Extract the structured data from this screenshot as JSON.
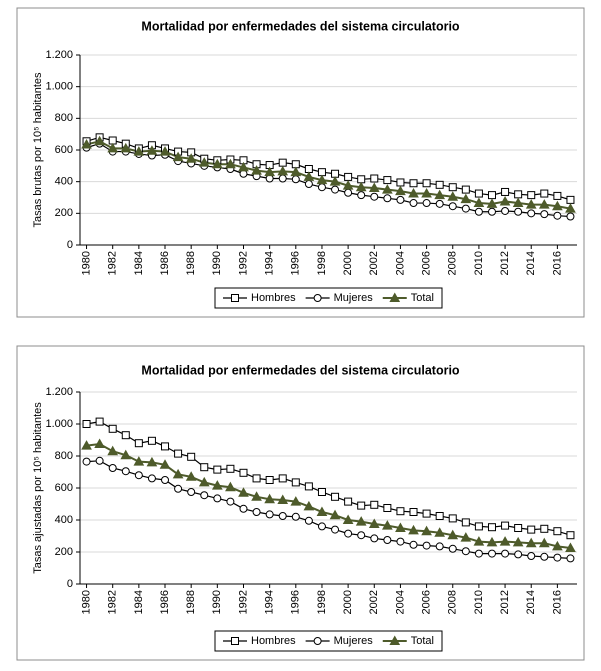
{
  "chart_data": [
    {
      "type": "line",
      "title": "Mortalidad por enfermedades del sistema circulatorio",
      "y_label": "Tasas brutas por 10⁵ habitantes",
      "x": [
        1980,
        1981,
        1982,
        1983,
        1984,
        1985,
        1986,
        1987,
        1988,
        1989,
        1990,
        1991,
        1992,
        1993,
        1994,
        1995,
        1996,
        1997,
        1998,
        1999,
        2000,
        2001,
        2002,
        2003,
        2004,
        2005,
        2006,
        2007,
        2008,
        2009,
        2010,
        2011,
        2012,
        2013,
        2014,
        2015,
        2016,
        2017
      ],
      "xlim": [
        1979.5,
        2017.5
      ],
      "xticks": [
        1980,
        1982,
        1984,
        1986,
        1988,
        1990,
        1992,
        1994,
        1996,
        1998,
        2000,
        2002,
        2004,
        2006,
        2008,
        2010,
        2012,
        2014,
        2016
      ],
      "ylim": [
        0,
        1200
      ],
      "yticks": [
        0,
        200,
        400,
        600,
        800,
        {
          "value": 1000,
          "label": "1.000"
        },
        {
          "value": 1200,
          "label": "1.200"
        }
      ],
      "grid": true,
      "legend": "bottom",
      "series": [
        {
          "name": "Hombres",
          "color": "#000000",
          "marker": "square",
          "values": [
            655,
            680,
            660,
            640,
            610,
            630,
            610,
            590,
            585,
            545,
            535,
            540,
            535,
            510,
            505,
            520,
            510,
            480,
            460,
            450,
            430,
            415,
            420,
            410,
            395,
            390,
            390,
            380,
            365,
            350,
            325,
            315,
            335,
            320,
            315,
            325,
            310,
            285
          ]
        },
        {
          "name": "Mujeres",
          "color": "#000000",
          "marker": "circle",
          "values": [
            615,
            640,
            590,
            590,
            575,
            565,
            570,
            530,
            515,
            500,
            490,
            480,
            450,
            435,
            420,
            420,
            415,
            385,
            365,
            350,
            330,
            315,
            305,
            295,
            285,
            265,
            265,
            260,
            245,
            230,
            210,
            210,
            215,
            210,
            200,
            195,
            185,
            180
          ]
        },
        {
          "name": "Total",
          "color": "#4e5b2b",
          "marker": "triangle",
          "values": [
            635,
            655,
            610,
            610,
            590,
            595,
            590,
            555,
            545,
            520,
            510,
            510,
            490,
            470,
            460,
            465,
            460,
            430,
            410,
            400,
            375,
            365,
            360,
            350,
            340,
            325,
            325,
            315,
            305,
            290,
            265,
            260,
            275,
            265,
            255,
            255,
            245,
            230
          ]
        }
      ]
    },
    {
      "type": "line",
      "title": "Mortalidad por enfermedades del sistema circulatorio",
      "y_label": "Tasas ajustadas por 10⁵ habitantes",
      "x": [
        1980,
        1981,
        1982,
        1983,
        1984,
        1985,
        1986,
        1987,
        1988,
        1989,
        1990,
        1991,
        1992,
        1993,
        1994,
        1995,
        1996,
        1997,
        1998,
        1999,
        2000,
        2001,
        2002,
        2003,
        2004,
        2005,
        2006,
        2007,
        2008,
        2009,
        2010,
        2011,
        2012,
        2013,
        2014,
        2015,
        2016,
        2017
      ],
      "xlim": [
        1979.5,
        2017.5
      ],
      "xticks": [
        1980,
        1982,
        1984,
        1986,
        1988,
        1990,
        1992,
        1994,
        1996,
        1998,
        2000,
        2002,
        2004,
        2006,
        2008,
        2010,
        2012,
        2014,
        2016
      ],
      "ylim": [
        0,
        1200
      ],
      "yticks": [
        0,
        200,
        400,
        600,
        800,
        {
          "value": 1000,
          "label": "1.000"
        },
        {
          "value": 1200,
          "label": "1.200"
        }
      ],
      "grid": true,
      "legend": "bottom",
      "series": [
        {
          "name": "Hombres",
          "color": "#000000",
          "marker": "square",
          "values": [
            1000,
            1015,
            970,
            930,
            880,
            895,
            860,
            815,
            795,
            730,
            715,
            720,
            695,
            660,
            650,
            660,
            635,
            610,
            575,
            545,
            515,
            490,
            495,
            475,
            455,
            450,
            440,
            425,
            410,
            385,
            360,
            355,
            365,
            350,
            340,
            345,
            330,
            305
          ]
        },
        {
          "name": "Mujeres",
          "color": "#000000",
          "marker": "circle",
          "values": [
            765,
            770,
            725,
            705,
            680,
            660,
            650,
            595,
            575,
            555,
            535,
            515,
            470,
            450,
            435,
            425,
            420,
            395,
            360,
            340,
            315,
            305,
            285,
            275,
            265,
            245,
            240,
            235,
            220,
            205,
            190,
            190,
            190,
            185,
            175,
            170,
            165,
            160
          ]
        },
        {
          "name": "Total",
          "color": "#4e5b2b",
          "marker": "triangle",
          "values": [
            865,
            875,
            830,
            805,
            765,
            760,
            745,
            685,
            670,
            635,
            615,
            605,
            570,
            545,
            530,
            525,
            515,
            485,
            450,
            430,
            400,
            390,
            375,
            365,
            350,
            335,
            330,
            320,
            305,
            290,
            265,
            260,
            265,
            260,
            255,
            255,
            235,
            225
          ]
        }
      ]
    }
  ]
}
